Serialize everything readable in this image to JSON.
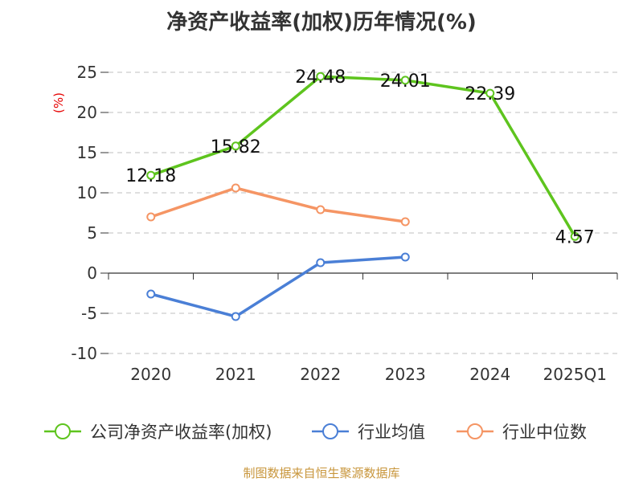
{
  "chart_data": {
    "type": "line",
    "title": "净资产收益率(加权)历年情况(%)",
    "ylabel": "(%)",
    "categories": [
      "2020",
      "2021",
      "2022",
      "2023",
      "2024",
      "2025Q1"
    ],
    "ylim": [
      -10,
      25
    ],
    "yticks": [
      25,
      20,
      15,
      10,
      5,
      0,
      -5,
      -10
    ],
    "ytick_labels": [
      "25",
      "20",
      "15",
      "10",
      "5",
      "0",
      "-5",
      "-10"
    ],
    "grid": true,
    "legend_position": "bottom",
    "series": [
      {
        "name": "公司净资产收益率(加权)",
        "color": "#5ec41e",
        "values": [
          12.18,
          15.82,
          24.48,
          24.01,
          22.39,
          4.57
        ],
        "labels": [
          "12.18",
          "15.82",
          "24.48",
          "24.01",
          "22.39",
          "4.57"
        ]
      },
      {
        "name": "行业均值",
        "color": "#4a7fd6",
        "values": [
          -2.6,
          -5.4,
          1.3,
          2.0,
          null,
          null
        ]
      },
      {
        "name": "行业中位数",
        "color": "#f59564",
        "values": [
          7.0,
          10.6,
          7.9,
          6.4,
          null,
          null
        ]
      }
    ]
  },
  "source_text": "制图数据来自恒生聚源数据库"
}
